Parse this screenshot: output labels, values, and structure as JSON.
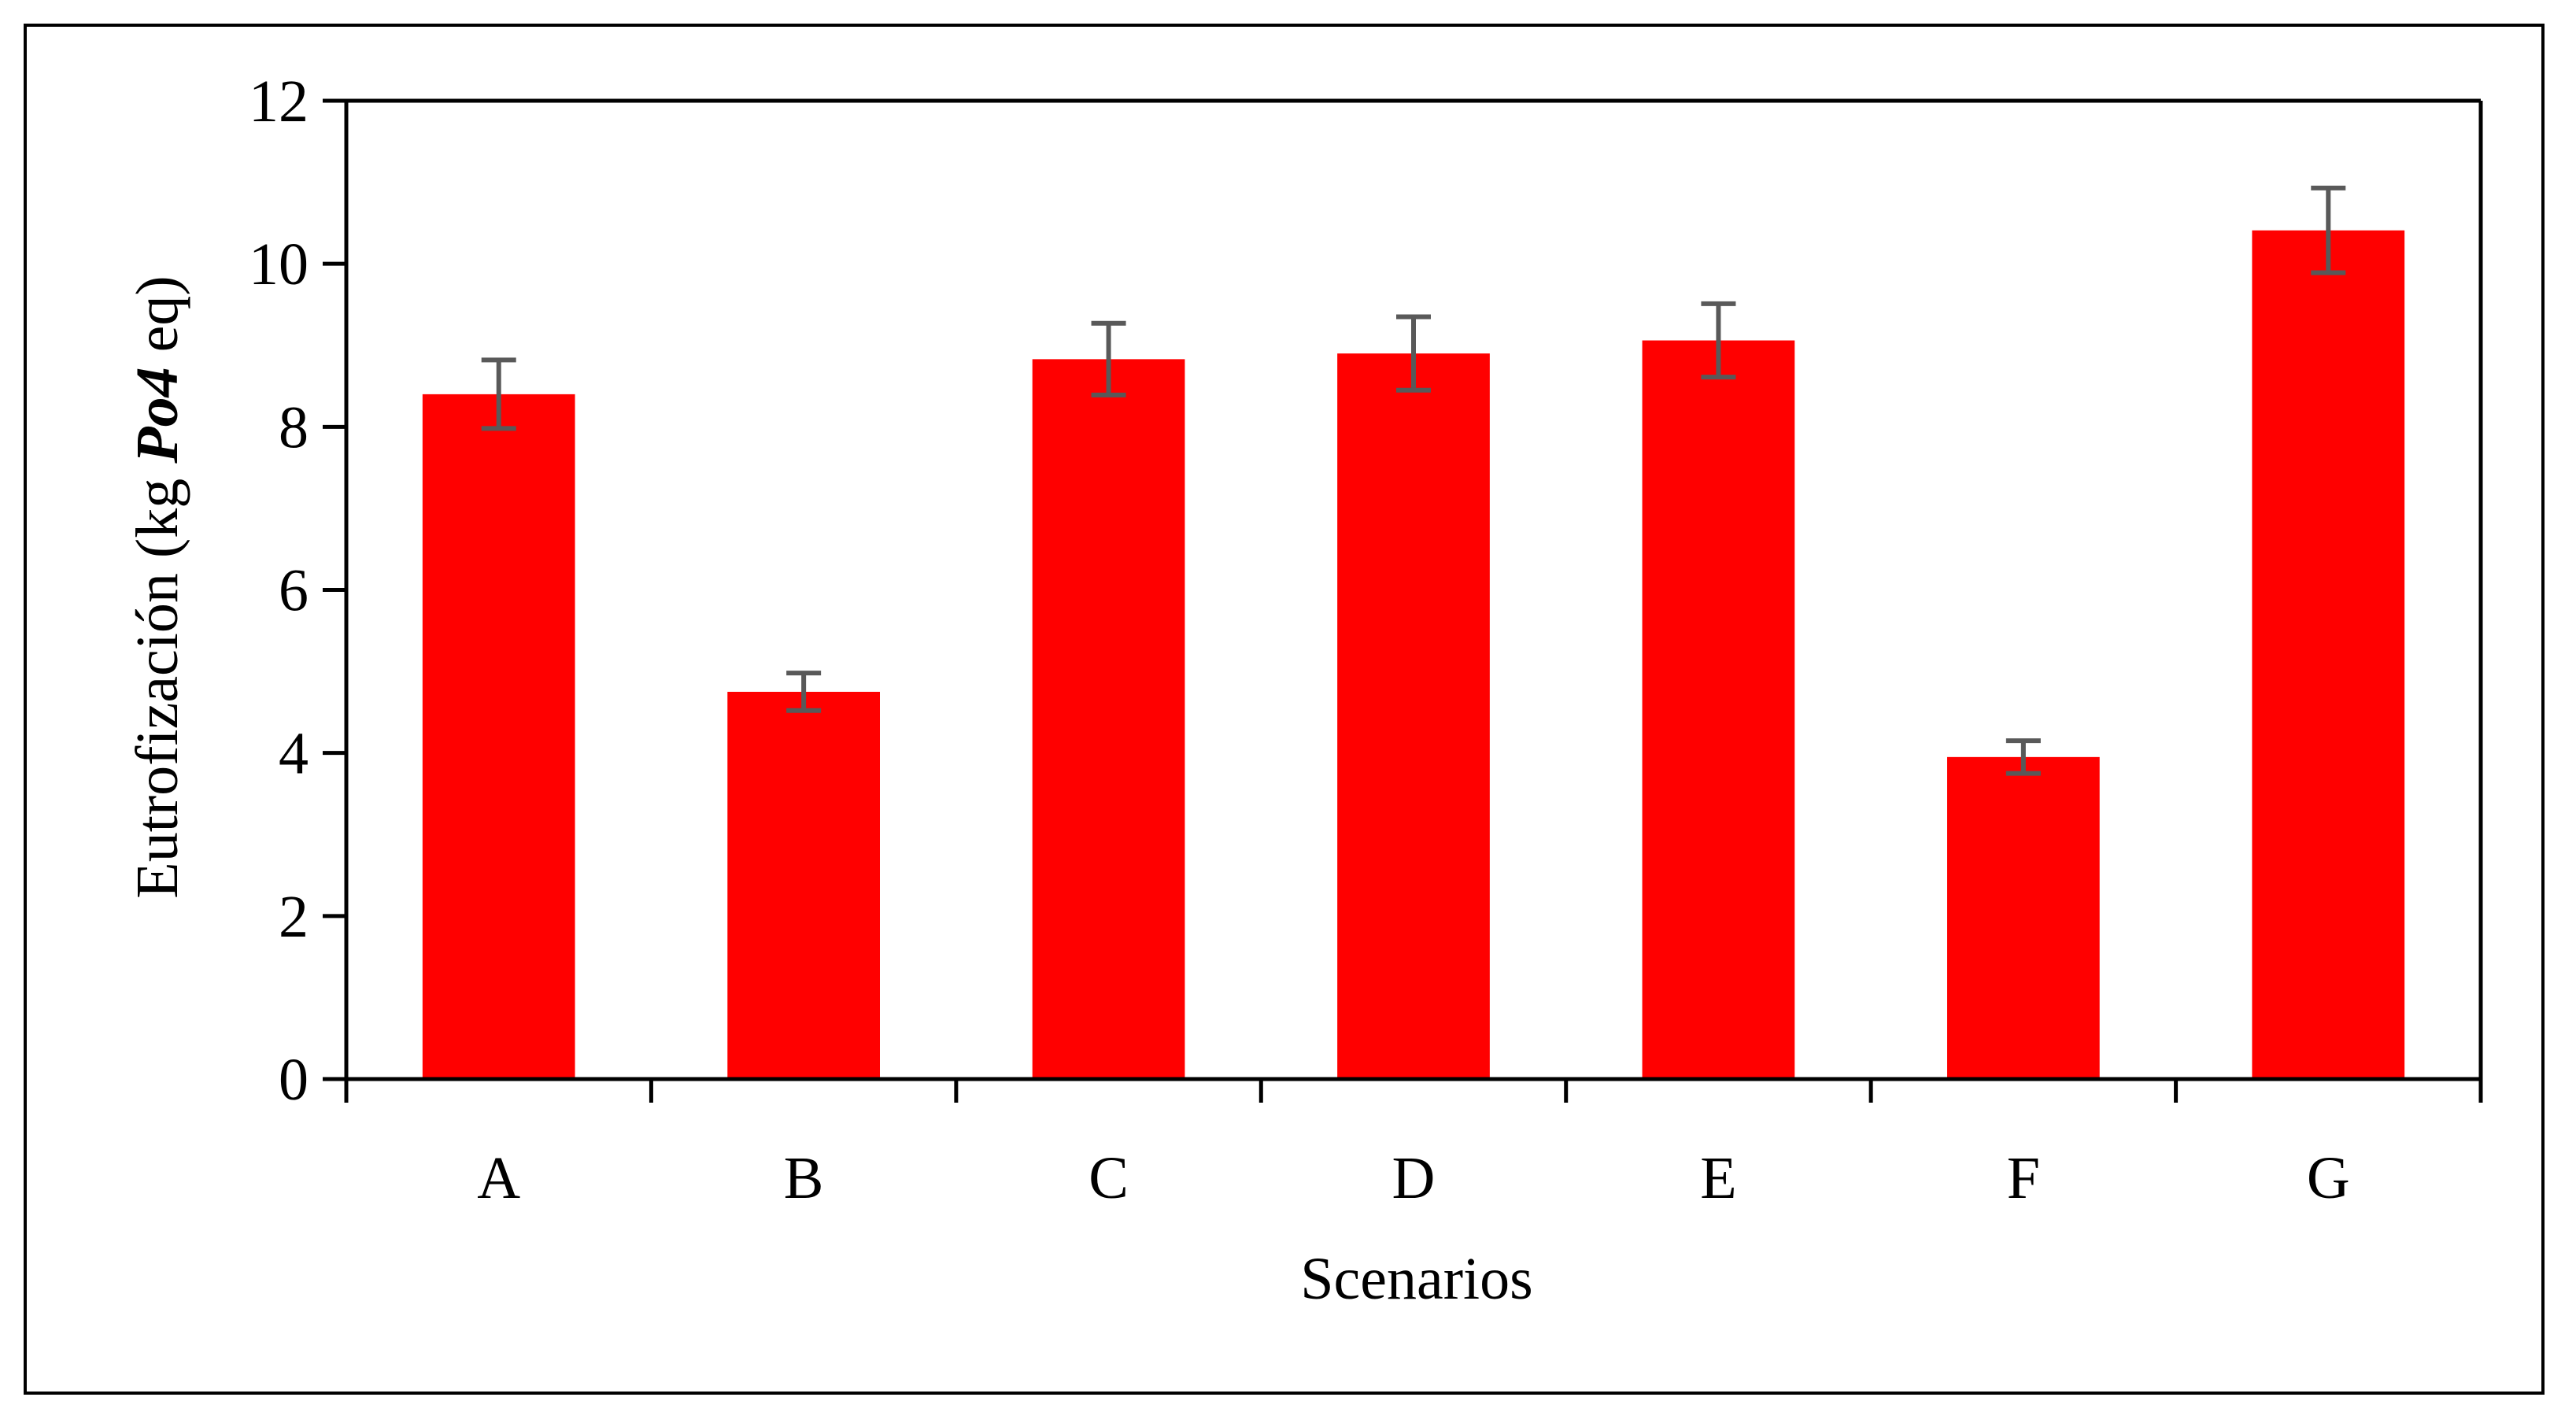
{
  "chart_data": {
    "type": "bar",
    "categories": [
      "A",
      "B",
      "C",
      "D",
      "E",
      "F",
      "G"
    ],
    "values": [
      8.4,
      4.75,
      8.83,
      8.9,
      9.06,
      3.95,
      10.41
    ],
    "error": [
      0.42,
      0.23,
      0.44,
      0.45,
      0.45,
      0.2,
      0.52
    ],
    "xlabel": "Scenarios",
    "ylabel": {
      "prefix": "Eutrofización (kg ",
      "emphasis": "Po4",
      "suffix": " eq)"
    },
    "ylim": [
      0,
      12
    ],
    "yticks": [
      "0",
      "2",
      "4",
      "6",
      "8",
      "10",
      "12"
    ],
    "grid": false,
    "legend": "none",
    "colors": {
      "bar": "#ff0000",
      "error_bar": "#595959",
      "axis": "#000000"
    }
  }
}
